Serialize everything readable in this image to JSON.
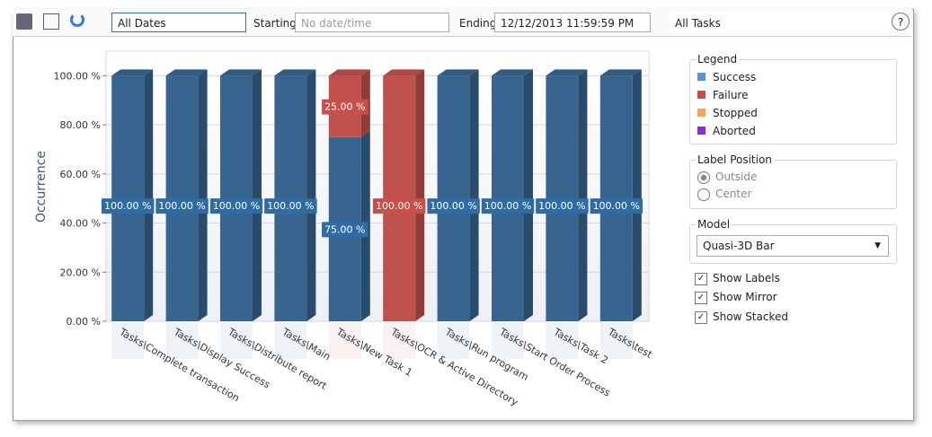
{
  "toolbar": {
    "date_range": "All Dates",
    "starting_label": "Starting:",
    "starting_value": "No date/time",
    "ending_label": "Ending:",
    "ending_value": "12/12/2013 11:59:59 PM",
    "task_filter": "All Tasks",
    "help": "?"
  },
  "chart_data": {
    "type": "bar",
    "stacked": true,
    "y_label": "Occurrence",
    "categories": [
      "Tasks\\Complete transaction",
      "Tasks\\Display Success",
      "Tasks\\Distribute report",
      "Tasks\\Main",
      "Tasks\\New Task 1",
      "Tasks\\OCR & Active Directory",
      "Tasks\\Run program",
      "Tasks\\Start Order Process",
      "Tasks\\Task 2",
      "Tasks\\test"
    ],
    "series": [
      {
        "name": "Success",
        "color": "#5b8fd6",
        "bar_color": "#386590",
        "values": [
          100,
          100,
          100,
          100,
          75,
          0,
          100,
          100,
          100,
          100
        ],
        "value_labels": [
          "100.00 %",
          "100.00 %",
          "100.00 %",
          "100.00 %",
          "75.00 %",
          null,
          "100.00 %",
          "100.00 %",
          "100.00 %",
          "100.00 %"
        ]
      },
      {
        "name": "Failure",
        "color": "#c0504d",
        "bar_color": "#c0504d",
        "values": [
          0,
          0,
          0,
          0,
          25,
          100,
          0,
          0,
          0,
          0
        ],
        "value_labels": [
          null,
          null,
          null,
          null,
          "25.00 %",
          "100.00 %",
          null,
          null,
          null,
          null
        ]
      },
      {
        "name": "Stopped",
        "color": "#f4a460",
        "bar_color": "#f4a460",
        "values": [
          0,
          0,
          0,
          0,
          0,
          0,
          0,
          0,
          0,
          0
        ]
      },
      {
        "name": "Aborted",
        "color": "#8a2be2",
        "bar_color": "#8a2be2",
        "values": [
          0,
          0,
          0,
          0,
          0,
          0,
          0,
          0,
          0,
          0
        ]
      }
    ],
    "ylim": [
      0,
      110
    ],
    "yticks": [
      {
        "value": 0,
        "label": "0.00 %"
      },
      {
        "value": 20,
        "label": "20.00 %"
      },
      {
        "value": 40,
        "label": "40.00 %"
      },
      {
        "value": 60,
        "label": "60.00 %"
      },
      {
        "value": 80,
        "label": "80.00 %"
      },
      {
        "value": 100,
        "label": "100.00 %"
      }
    ],
    "grid": true
  },
  "panel": {
    "legend_title": "Legend",
    "label_position": {
      "title": "Label Position",
      "options": [
        "Outside",
        "Center"
      ]
    },
    "model": {
      "title": "Model",
      "value": "Quasi-3D Bar"
    },
    "checkboxes": [
      "Show Labels",
      "Show Mirror",
      "Show Stacked"
    ]
  }
}
